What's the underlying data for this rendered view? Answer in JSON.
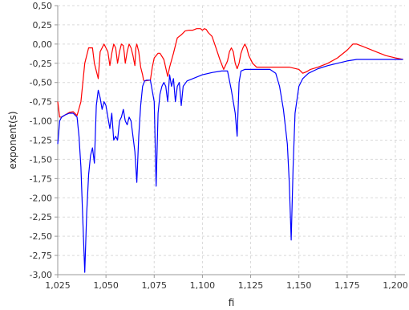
{
  "chart_data": {
    "type": "line",
    "title": "",
    "xlabel": "fi",
    "ylabel": "exponent(s)",
    "xlim": [
      1.025,
      1.205
    ],
    "ylim": [
      -3.0,
      0.5
    ],
    "x_ticks": [
      "1,025",
      "1,050",
      "1,075",
      "1,100",
      "1,125",
      "1,150",
      "1,175",
      "1,200"
    ],
    "y_ticks": [
      "0,50",
      "0,25",
      "0,00",
      "-0,25",
      "-0,50",
      "-0,75",
      "-1,00",
      "-1,25",
      "-1,50",
      "-1,75",
      "-2,00",
      "-2,25",
      "-2,50",
      "-2,75",
      "-3,00"
    ],
    "grid": true,
    "legend": "none",
    "colors": {
      "series_red": "#ff0000",
      "series_blue": "#0000ff",
      "grid": "#d9d9d9",
      "axis": "#999999"
    },
    "series": [
      {
        "color": "#ff0000",
        "x": [
          1.025,
          1.026,
          1.027,
          1.029,
          1.031,
          1.033,
          1.035,
          1.037,
          1.039,
          1.041,
          1.043,
          1.044,
          1.046,
          1.047,
          1.049,
          1.051,
          1.052,
          1.053,
          1.054,
          1.055,
          1.056,
          1.057,
          1.058,
          1.059,
          1.0595,
          1.06,
          1.061,
          1.062,
          1.063,
          1.064,
          1.065,
          1.0655,
          1.066,
          1.067,
          1.068,
          1.069,
          1.0695,
          1.07,
          1.073,
          1.074,
          1.075,
          1.076,
          1.077,
          1.078,
          1.08,
          1.082,
          1.083,
          1.085,
          1.087,
          1.089,
          1.091,
          1.093,
          1.095,
          1.097,
          1.099,
          1.1,
          1.101,
          1.102,
          1.103,
          1.105,
          1.107,
          1.109,
          1.111,
          1.113,
          1.114,
          1.115,
          1.116,
          1.117,
          1.118,
          1.119,
          1.12,
          1.121,
          1.122,
          1.123,
          1.124,
          1.126,
          1.128,
          1.13,
          1.135,
          1.14,
          1.145,
          1.15,
          1.152,
          1.154,
          1.156,
          1.16,
          1.165,
          1.17,
          1.175,
          1.178,
          1.18,
          1.183,
          1.19,
          1.195,
          1.2,
          1.204
        ],
        "values": [
          -0.75,
          -0.95,
          -0.95,
          -0.92,
          -0.89,
          -0.88,
          -0.93,
          -0.75,
          -0.25,
          -0.05,
          -0.05,
          -0.25,
          -0.45,
          -0.1,
          0.0,
          -0.1,
          -0.28,
          -0.12,
          0.0,
          -0.05,
          -0.25,
          -0.1,
          0.0,
          -0.02,
          -0.12,
          -0.25,
          -0.1,
          0.0,
          -0.05,
          -0.15,
          -0.28,
          -0.05,
          0.0,
          -0.1,
          -0.3,
          -0.4,
          -0.47,
          -0.48,
          -0.47,
          -0.3,
          -0.18,
          -0.15,
          -0.12,
          -0.12,
          -0.2,
          -0.42,
          -0.3,
          -0.12,
          0.08,
          0.12,
          0.17,
          0.18,
          0.18,
          0.2,
          0.2,
          0.18,
          0.2,
          0.19,
          0.15,
          0.1,
          -0.05,
          -0.2,
          -0.33,
          -0.22,
          -0.1,
          -0.05,
          -0.1,
          -0.25,
          -0.32,
          -0.25,
          -0.12,
          -0.05,
          0.0,
          -0.05,
          -0.15,
          -0.25,
          -0.3,
          -0.3,
          -0.3,
          -0.3,
          -0.3,
          -0.33,
          -0.38,
          -0.36,
          -0.33,
          -0.3,
          -0.25,
          -0.18,
          -0.08,
          0.0,
          0.0,
          -0.03,
          -0.1,
          -0.15,
          -0.18,
          -0.2
        ]
      },
      {
        "color": "#0000ff",
        "x": [
          1.025,
          1.026,
          1.027,
          1.029,
          1.031,
          1.033,
          1.035,
          1.036,
          1.037,
          1.038,
          1.039,
          1.04,
          1.041,
          1.042,
          1.043,
          1.044,
          1.045,
          1.046,
          1.047,
          1.048,
          1.049,
          1.05,
          1.051,
          1.052,
          1.053,
          1.054,
          1.055,
          1.056,
          1.057,
          1.058,
          1.059,
          1.06,
          1.061,
          1.062,
          1.063,
          1.065,
          1.066,
          1.067,
          1.068,
          1.069,
          1.07,
          1.071,
          1.073,
          1.075,
          1.076,
          1.077,
          1.078,
          1.079,
          1.08,
          1.081,
          1.082,
          1.083,
          1.084,
          1.085,
          1.086,
          1.087,
          1.088,
          1.089,
          1.09,
          1.092,
          1.095,
          1.1,
          1.105,
          1.11,
          1.113,
          1.115,
          1.117,
          1.118,
          1.119,
          1.12,
          1.122,
          1.125,
          1.13,
          1.135,
          1.138,
          1.14,
          1.142,
          1.144,
          1.145,
          1.146,
          1.147,
          1.148,
          1.15,
          1.152,
          1.155,
          1.16,
          1.165,
          1.17,
          1.175,
          1.18,
          1.19,
          1.2,
          1.204
        ],
        "values": [
          -1.3,
          -1.0,
          -0.95,
          -0.92,
          -0.9,
          -0.9,
          -0.95,
          -1.2,
          -1.6,
          -2.3,
          -2.97,
          -2.2,
          -1.7,
          -1.45,
          -1.35,
          -1.55,
          -0.8,
          -0.6,
          -0.7,
          -0.85,
          -0.75,
          -0.8,
          -0.95,
          -1.1,
          -0.9,
          -1.25,
          -1.2,
          -1.25,
          -1.0,
          -0.95,
          -0.85,
          -1.0,
          -1.05,
          -0.95,
          -1.0,
          -1.4,
          -1.8,
          -1.2,
          -0.8,
          -0.55,
          -0.48,
          -0.47,
          -0.47,
          -0.75,
          -1.85,
          -0.9,
          -0.65,
          -0.55,
          -0.5,
          -0.55,
          -0.75,
          -0.4,
          -0.55,
          -0.45,
          -0.75,
          -0.55,
          -0.5,
          -0.8,
          -0.55,
          -0.48,
          -0.45,
          -0.4,
          -0.37,
          -0.35,
          -0.35,
          -0.6,
          -0.9,
          -1.2,
          -0.5,
          -0.35,
          -0.33,
          -0.33,
          -0.33,
          -0.33,
          -0.38,
          -0.55,
          -0.85,
          -1.3,
          -1.8,
          -2.55,
          -1.6,
          -0.9,
          -0.55,
          -0.45,
          -0.38,
          -0.32,
          -0.28,
          -0.25,
          -0.22,
          -0.2,
          -0.2,
          -0.2,
          -0.2
        ]
      }
    ]
  }
}
